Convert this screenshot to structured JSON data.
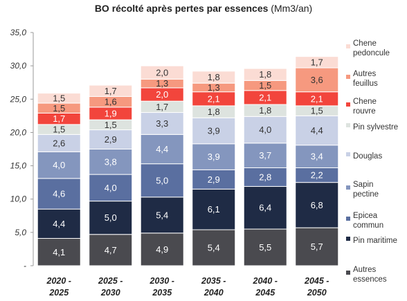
{
  "title": "BO récolté après pertes par essences",
  "unit": "(Mm3/an)",
  "chart_data": {
    "type": "stacked-bar",
    "title": "BO récolté après pertes par essences (Mm3/an)",
    "categories": [
      "2020 - 2025",
      "2025 - 2030",
      "2030 - 2035",
      "2035 - 2040",
      "2040 - 2045",
      "2045 - 2050"
    ],
    "ylim": [
      0,
      35
    ],
    "yticks": [
      "-",
      "5,0",
      "10,0",
      "15,0",
      "20,0",
      "25,0",
      "30,0",
      "35,0"
    ],
    "grid": false,
    "legend_position": "right",
    "series": [
      {
        "name": "Autres essences",
        "color": "#4a4a4f",
        "values": [
          4.1,
          4.7,
          4.9,
          5.4,
          5.5,
          5.7
        ],
        "labels": [
          "4,1",
          "4,7",
          "4,9",
          "5,4",
          "5,5",
          "5,7"
        ]
      },
      {
        "name": "Pin maritime",
        "color": "#1f2b45",
        "values": [
          4.4,
          5.0,
          5.4,
          6.1,
          6.4,
          6.8
        ],
        "labels": [
          "4,4",
          "5,0",
          "5,4",
          "6,1",
          "6,4",
          "6,8"
        ]
      },
      {
        "name": "Epicea commun",
        "color": "#5a6fa0",
        "values": [
          4.6,
          4.0,
          5.0,
          2.9,
          2.8,
          2.2
        ],
        "labels": [
          "4,6",
          "4,0",
          "5,0",
          "2,9",
          "2,8",
          "2,2"
        ]
      },
      {
        "name": "Sapin pectine",
        "color": "#8496be",
        "values": [
          4.0,
          3.8,
          4.4,
          3.9,
          3.7,
          3.4
        ],
        "labels": [
          "4,0",
          "3,8",
          "4,4",
          "3,9",
          "3,7",
          "3,4"
        ]
      },
      {
        "name": "Douglas",
        "color": "#c9d1e6",
        "values": [
          2.6,
          2.9,
          3.3,
          3.9,
          4.0,
          4.4
        ],
        "labels": [
          "2,6",
          "2,9",
          "3,3",
          "3,9",
          "4,0",
          "4,4"
        ]
      },
      {
        "name": "Pin sylvestre",
        "color": "#dde3df",
        "values": [
          1.5,
          1.5,
          1.7,
          1.8,
          1.8,
          1.5
        ],
        "labels": [
          "1,5",
          "1,5",
          "1,7",
          "1,8",
          "1,8",
          "1,5"
        ]
      },
      {
        "name": "Chene rouvre",
        "color": "#f2453c",
        "values": [
          1.7,
          1.9,
          2.0,
          2.1,
          2.1,
          2.1
        ],
        "labels": [
          "1,7",
          "1,9",
          "2,0",
          "2,1",
          "2,1",
          "2,1"
        ]
      },
      {
        "name": "Autres feuillus",
        "color": "#f6997f",
        "values": [
          1.5,
          1.6,
          1.3,
          1.3,
          1.5,
          3.6
        ],
        "labels": [
          "1,5",
          "1,6",
          "1,3",
          "1,3",
          "1,5",
          "3,6"
        ]
      },
      {
        "name": "Chene pedonculé",
        "color": "#fbdcd4",
        "values": [
          1.5,
          1.7,
          2.0,
          1.8,
          1.8,
          1.7
        ],
        "labels": [
          "1,5",
          "1,7",
          "2,0",
          "1,8",
          "1,8",
          "1,7"
        ]
      }
    ],
    "legend": [
      {
        "label": "Chene pedoncule",
        "color": "#fbdcd4"
      },
      {
        "label": "Autres feuillus",
        "color": "#f6997f"
      },
      {
        "label": "Chene rouvre",
        "color": "#f2453c"
      },
      {
        "label": "Pin sylvestre",
        "color": "#dde3df"
      },
      {
        "label": "Douglas",
        "color": "#c9d1e6"
      },
      {
        "label": "Sapin pectine",
        "color": "#8496be"
      },
      {
        "label": "Epicea commun",
        "color": "#5a6fa0"
      },
      {
        "label": "Pin maritime",
        "color": "#1f2b45"
      },
      {
        "label": "Autres essences",
        "color": "#4a4a4f"
      }
    ]
  }
}
